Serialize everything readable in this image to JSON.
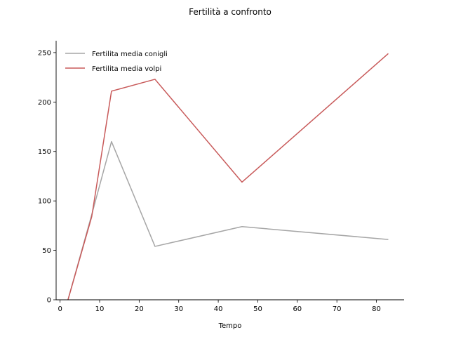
{
  "chart_data": {
    "type": "line",
    "title": "Fertilità a confronto",
    "xlabel": "Tempo",
    "ylabel": "",
    "xlim": [
      -1,
      87
    ],
    "ylim": [
      0,
      262
    ],
    "xticks": [
      0,
      10,
      20,
      30,
      40,
      50,
      60,
      70,
      80
    ],
    "yticks": [
      0,
      50,
      100,
      150,
      200,
      250
    ],
    "grid": false,
    "legend_position": "top-left",
    "series": [
      {
        "name": "Fertilita media conigli",
        "color": "#a6a6a6",
        "x": [
          2,
          8,
          13,
          24,
          46,
          83
        ],
        "y": [
          0,
          86,
          160,
          54,
          74,
          61
        ]
      },
      {
        "name": "Fertilita media volpi",
        "color": "#c85a5a",
        "x": [
          2,
          8,
          13,
          24,
          46,
          83
        ],
        "y": [
          0,
          84,
          211,
          223,
          119,
          249
        ]
      }
    ]
  }
}
